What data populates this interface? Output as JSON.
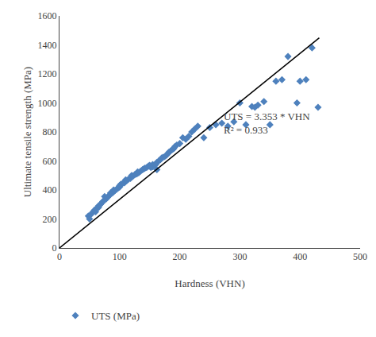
{
  "chart_data": {
    "type": "scatter",
    "xlabel": "Hardness (VHN)",
    "ylabel": "Ultimate tensile strength (MPa)",
    "xlim": [
      0,
      500
    ],
    "ylim": [
      0,
      1600
    ],
    "xticks": [
      0,
      100,
      200,
      300,
      400,
      500
    ],
    "yticks": [
      0,
      200,
      400,
      600,
      800,
      1000,
      1200,
      1400,
      1600
    ],
    "grid": false,
    "legend": "below",
    "annotations": [
      "UTS = 3.353 * VHN",
      "R² = 0.933"
    ],
    "series": [
      {
        "name": "UTS (MPa)",
        "type": "scatter",
        "color": "#4e81bd",
        "marker": "diamond",
        "x": [
          48,
          50,
          52,
          55,
          58,
          60,
          62,
          65,
          65,
          68,
          70,
          72,
          75,
          75,
          78,
          80,
          82,
          85,
          85,
          88,
          90,
          90,
          92,
          95,
          98,
          100,
          100,
          102,
          105,
          108,
          110,
          110,
          112,
          115,
          118,
          120,
          120,
          122,
          125,
          128,
          130,
          130,
          132,
          135,
          138,
          140,
          142,
          145,
          148,
          150,
          152,
          155,
          155,
          158,
          160,
          162,
          162,
          165,
          168,
          170,
          172,
          175,
          178,
          180,
          182,
          185,
          188,
          190,
          192,
          195,
          200,
          205,
          210,
          215,
          220,
          225,
          230,
          240,
          250,
          260,
          270,
          280,
          290,
          300,
          310,
          320,
          325,
          330,
          340,
          350,
          360,
          370,
          380,
          395,
          400,
          410,
          420,
          430
        ],
        "values": [
          220,
          200,
          230,
          245,
          260,
          250,
          275,
          280,
          290,
          300,
          310,
          320,
          330,
          355,
          340,
          350,
          360,
          370,
          380,
          380,
          390,
          400,
          395,
          405,
          415,
          420,
          430,
          440,
          445,
          450,
          460,
          470,
          465,
          475,
          480,
          490,
          500,
          495,
          505,
          510,
          515,
          525,
          520,
          530,
          540,
          545,
          550,
          555,
          565,
          570,
          555,
          560,
          575,
          570,
          575,
          590,
          540,
          600,
          610,
          620,
          625,
          630,
          640,
          650,
          660,
          670,
          680,
          685,
          700,
          710,
          720,
          760,
          750,
          770,
          800,
          820,
          840,
          760,
          830,
          850,
          860,
          840,
          870,
          1000,
          850,
          975,
          970,
          985,
          1010,
          850,
          1150,
          1160,
          1320,
          1000,
          1150,
          1160,
          1380,
          970
        ]
      },
      {
        "type": "line",
        "color": "#000000",
        "line_style": "solid",
        "x": [
          0,
          432
        ],
        "values": [
          0,
          1448.496
        ]
      }
    ]
  }
}
